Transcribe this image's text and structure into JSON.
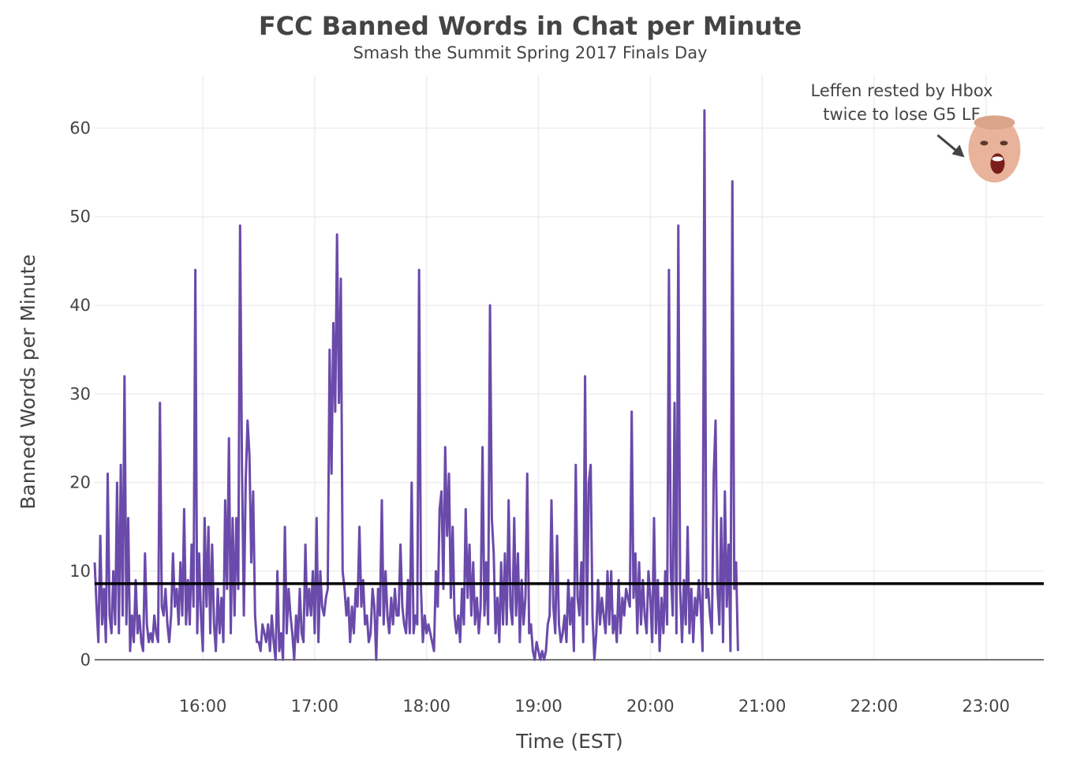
{
  "chart_data": {
    "type": "line",
    "title": "FCC Banned Words in Chat per Minute",
    "subtitle": "Smash the Summit Spring 2017 Finals Day",
    "xlabel": "Time (EST)",
    "ylabel": "Banned Words per Minute",
    "x_ticks": [
      "16:00",
      "17:00",
      "18:00",
      "19:00",
      "20:00",
      "21:00",
      "22:00",
      "23:00"
    ],
    "y_ticks": [
      0,
      10,
      20,
      30,
      40,
      50,
      60
    ],
    "xlim": [
      "15:02",
      "23:31"
    ],
    "ylim": [
      -3,
      66
    ],
    "grid": true,
    "colors": {
      "series": "#6a4aaa",
      "reference_line": "#000000",
      "grid": "#eeeeee"
    },
    "reference_line": {
      "y": 8.6
    },
    "series": [
      {
        "x_start": "15:02",
        "x_step_minutes": 1,
        "values": [
          11,
          6,
          2,
          14,
          4,
          8,
          2,
          21,
          5,
          3,
          10,
          4,
          20,
          3,
          22,
          5,
          32,
          4,
          16,
          1,
          5,
          2,
          9,
          3,
          5,
          2,
          1,
          12,
          4,
          2,
          3,
          2,
          5,
          3,
          2,
          29,
          6,
          5,
          8,
          4,
          2,
          5,
          12,
          6,
          8,
          4,
          11,
          5,
          17,
          4,
          9,
          4,
          13,
          6,
          44,
          3,
          12,
          5,
          1,
          16,
          6,
          15,
          3,
          13,
          4,
          1,
          8,
          3,
          7,
          2,
          18,
          8,
          25,
          3,
          16,
          5,
          16,
          8,
          49,
          22,
          5,
          20,
          27,
          23,
          11,
          19,
          5,
          2,
          2,
          1,
          4,
          3,
          2,
          4,
          1,
          5,
          2,
          0,
          10,
          1,
          3,
          0,
          15,
          3,
          8,
          5,
          3,
          0,
          5,
          2,
          8,
          3,
          2,
          13,
          5,
          8,
          5,
          10,
          3,
          16,
          2,
          10,
          6,
          5,
          7,
          8,
          35,
          21,
          38,
          28,
          48,
          29,
          43,
          10,
          8,
          5,
          7,
          2,
          6,
          3,
          8,
          6,
          15,
          6,
          9,
          4,
          5,
          2,
          3,
          8,
          6,
          0,
          8,
          5,
          18,
          4,
          10,
          5,
          3,
          7,
          4,
          8,
          5,
          5,
          13,
          6,
          4,
          3,
          9,
          3,
          20,
          3,
          5,
          4,
          44,
          8,
          2,
          5,
          3,
          4,
          3,
          2,
          1,
          10,
          6,
          17,
          19,
          8,
          24,
          14,
          21,
          7,
          15,
          5,
          3,
          5,
          2,
          8,
          4,
          17,
          7,
          13,
          5,
          11,
          4,
          7,
          3,
          6,
          24,
          5,
          11,
          4,
          40,
          16,
          12,
          3,
          7,
          2,
          11,
          4,
          12,
          4,
          18,
          6,
          4,
          16,
          5,
          12,
          2,
          9,
          4,
          7,
          21,
          3,
          4,
          1,
          0,
          2,
          1,
          0,
          1,
          0,
          1,
          4,
          5,
          18,
          6,
          3,
          14,
          4,
          2,
          3,
          5,
          2,
          9,
          4,
          7,
          1,
          22,
          7,
          5,
          11,
          2,
          32,
          4,
          20,
          22,
          5,
          0,
          3,
          9,
          4,
          7,
          5,
          3,
          10,
          4,
          10,
          3,
          5,
          2,
          9,
          3,
          7,
          5,
          8,
          7,
          6,
          28,
          7,
          12,
          3,
          11,
          4,
          9,
          5,
          3,
          10,
          7,
          2,
          16,
          3,
          9,
          1,
          7,
          3,
          10,
          4,
          44,
          10,
          5,
          29,
          3,
          49,
          8,
          2,
          9,
          4,
          15,
          3,
          8,
          2,
          7,
          5,
          9,
          6,
          1,
          62,
          7,
          8,
          5,
          3,
          21,
          27,
          8,
          4,
          16,
          2,
          19,
          6,
          13,
          1,
          54,
          8,
          11,
          1
        ]
      }
    ],
    "annotation": {
      "text_lines": [
        "Leffen rested by Hbox",
        "twice to lose G5 LF"
      ],
      "x": "23:02",
      "y": 56,
      "icon": "face-icon"
    }
  }
}
